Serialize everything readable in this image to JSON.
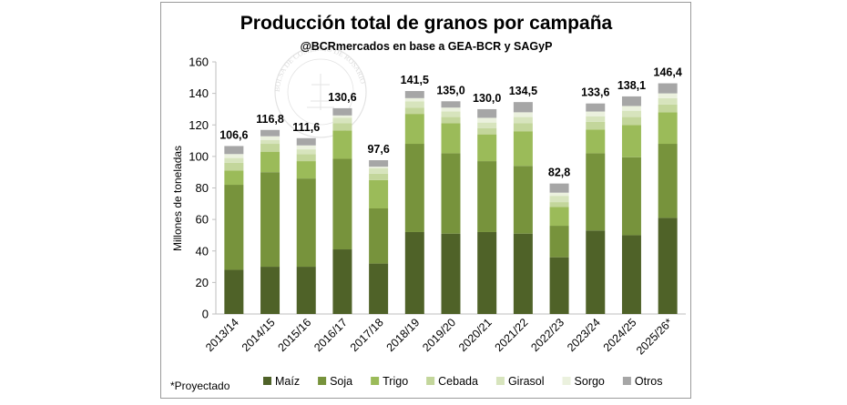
{
  "chart_data": {
    "type": "bar",
    "stacked": true,
    "title": "Producción total de granos por campaña",
    "subtitle": "@BCRmercados en base a GEA-BCR y SAGyP",
    "ylabel": "Millones de toneladas",
    "xlabel": "",
    "ylim": [
      0,
      160
    ],
    "yticks": [
      "0",
      "20",
      "40",
      "60",
      "80",
      "100",
      "120",
      "140",
      "160"
    ],
    "ytick_values": [
      0,
      20,
      40,
      60,
      80,
      100,
      120,
      140,
      160
    ],
    "categories": [
      "2013/14",
      "2014/15",
      "2015/16",
      "2016/17",
      "2017/18",
      "2018/19",
      "2019/20",
      "2020/21",
      "2021/22",
      "2022/23",
      "2023/24",
      "2024/25",
      "2025/26*"
    ],
    "totals": [
      "106,6",
      "116,8",
      "111,6",
      "130,6",
      "97,6",
      "141,5",
      "135,0",
      "130,0",
      "134,5",
      "82,8",
      "133,6",
      "138,1",
      "146,4"
    ],
    "total_values": [
      106.6,
      116.8,
      111.6,
      130.6,
      97.6,
      141.5,
      135.0,
      130.0,
      134.5,
      82.8,
      133.6,
      138.1,
      146.4
    ],
    "series": [
      {
        "name": "Maíz",
        "color": "#4f6228",
        "values": [
          28,
          30,
          30,
          41,
          32,
          52,
          51,
          52,
          51,
          36,
          53,
          50,
          61
        ]
      },
      {
        "name": "Soja",
        "color": "#77933c",
        "values": [
          54,
          60,
          56,
          57.5,
          35,
          56,
          51,
          45,
          43,
          20,
          49,
          49.5,
          47
        ]
      },
      {
        "name": "Trigo",
        "color": "#9bbb59",
        "values": [
          9,
          13,
          11,
          18,
          18,
          19,
          19,
          17,
          22,
          12,
          15,
          20.5,
          20
        ]
      },
      {
        "name": "Cebada",
        "color": "#c3d69b",
        "values": [
          5,
          5,
          4.5,
          4.5,
          4,
          4,
          4,
          4,
          5,
          3,
          5,
          5,
          5
        ]
      },
      {
        "name": "Girasol",
        "color": "#d7e4bd",
        "values": [
          3,
          2.5,
          3,
          3.5,
          3.5,
          4,
          3.5,
          3.5,
          4,
          4,
          3.5,
          4,
          4
        ]
      },
      {
        "name": "Sorgo",
        "color": "#ebf1de",
        "values": [
          2.5,
          2.3,
          2.5,
          1.5,
          1,
          2,
          2.5,
          3,
          3,
          2,
          3,
          3,
          3
        ]
      },
      {
        "name": "Otros",
        "color": "#a6a6a6",
        "values": [
          5.1,
          4.0,
          4.6,
          4.6,
          4.1,
          4.5,
          4.0,
          5.5,
          6.5,
          5.8,
          5.1,
          6.1,
          6.4
        ]
      }
    ],
    "legend": {
      "placement": "bottom",
      "entries": [
        "Maíz",
        "Soja",
        "Trigo",
        "Cebada",
        "Girasol",
        "Sorgo",
        "Otros"
      ]
    },
    "footnote": "*Proyectado",
    "watermark_text": "BOLSA DE COMERCIO DE ROSARIO",
    "grid": false
  }
}
